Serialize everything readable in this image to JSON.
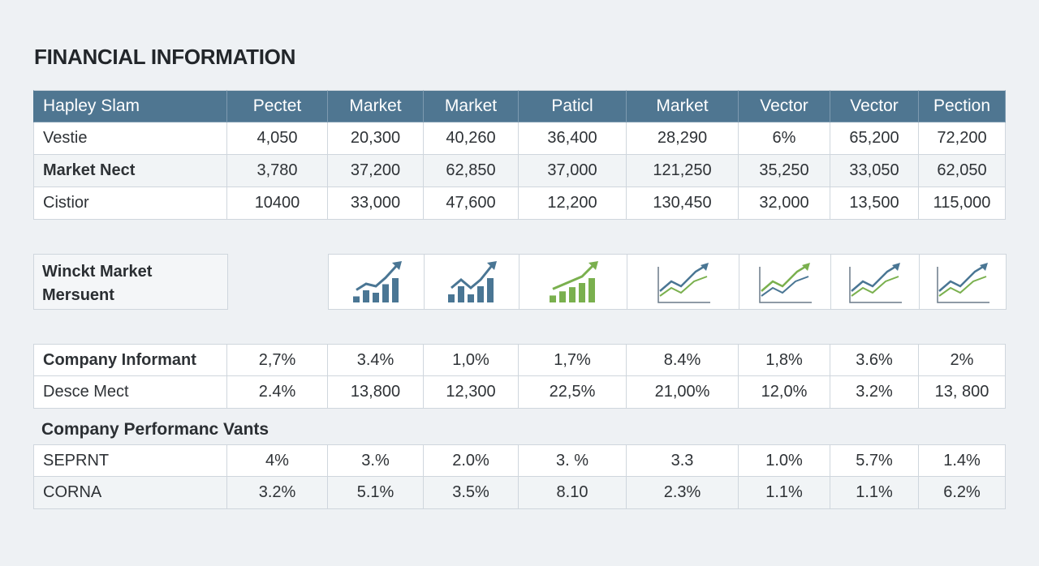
{
  "page": {
    "title": "FINANCIAL INFORMATION"
  },
  "chart_data": [
    {
      "type": "table",
      "columns": [
        "Hapley Slam",
        "Pectet",
        "Market",
        "Market",
        "Paticl",
        "Market",
        "Vector",
        "Vector",
        "Pection"
      ],
      "rows": [
        {
          "label": "Vestie",
          "values": [
            "4,050",
            "20,300",
            "40,260",
            "36,400",
            "28,290",
            "6%",
            "65,200",
            "72,200"
          ]
        },
        {
          "label": "Market Nect",
          "values": [
            "3,780",
            "37,200",
            "62,850",
            "37,000",
            "121,250",
            "35,250",
            "33,050",
            "62,050"
          ]
        },
        {
          "label": "Cistior",
          "values": [
            "10400",
            "33,000",
            "47,600",
            "12,200",
            "130,450",
            "32,000",
            "13,500",
            "115,000"
          ]
        }
      ]
    },
    {
      "type": "table",
      "label_lines": [
        "Winckt Market",
        "Mersuent"
      ],
      "sparklines": [
        {
          "icon": "bar-growth-icon",
          "color": "#4a7694",
          "values": [
            1,
            2,
            1.6,
            3,
            4
          ]
        },
        {
          "icon": "bar-growth-icon",
          "color": "#4a7694",
          "values": [
            1,
            2,
            1,
            2,
            3
          ]
        },
        {
          "icon": "bar-growth-icon",
          "color": "#7ab04e",
          "values": [
            1,
            1.6,
            2.2,
            2.8,
            3.5
          ]
        },
        {
          "icon": "line-growth-icon",
          "color": "#4a7694",
          "accent": "#7ab04e"
        },
        {
          "icon": "line-growth-icon",
          "color": "#7ab04e",
          "accent": "#4a7694"
        },
        {
          "icon": "line-growth-icon",
          "color": "#4a7694",
          "accent": "#7ab04e"
        },
        {
          "icon": "line-growth-icon",
          "color": "#4a7694",
          "accent": "#7ab04e"
        }
      ]
    },
    {
      "type": "table",
      "rows": [
        {
          "label": "Company Informant",
          "values": [
            "2,7%",
            "3.4%",
            "1,0%",
            "1,7%",
            "8.4%",
            "1,8%",
            "3.6%",
            "2%"
          ]
        },
        {
          "label": "Desce Mect",
          "values": [
            "2.4%",
            "13,800",
            "12,300",
            "22,5%",
            "21,00%",
            "12,0%",
            "3.2%",
            "13, 800"
          ]
        }
      ]
    },
    {
      "type": "table",
      "title": "Company Performanc Vants",
      "rows": [
        {
          "label": "SEPRNT",
          "values": [
            "4%",
            "3.%",
            "2.0%",
            "3. %",
            "3.3",
            "1.0%",
            "5.7%",
            "1.4%"
          ]
        },
        {
          "label": "CORNA",
          "values": [
            "3.2%",
            "5.1%",
            "3.5%",
            "8.10",
            "2.3%",
            "1.1%",
            "1.1%",
            "6.2%"
          ]
        }
      ]
    }
  ],
  "colors": {
    "header": "#4f7691",
    "blue": "#4a7694",
    "green": "#7ab04e",
    "background": "#eef1f4"
  }
}
